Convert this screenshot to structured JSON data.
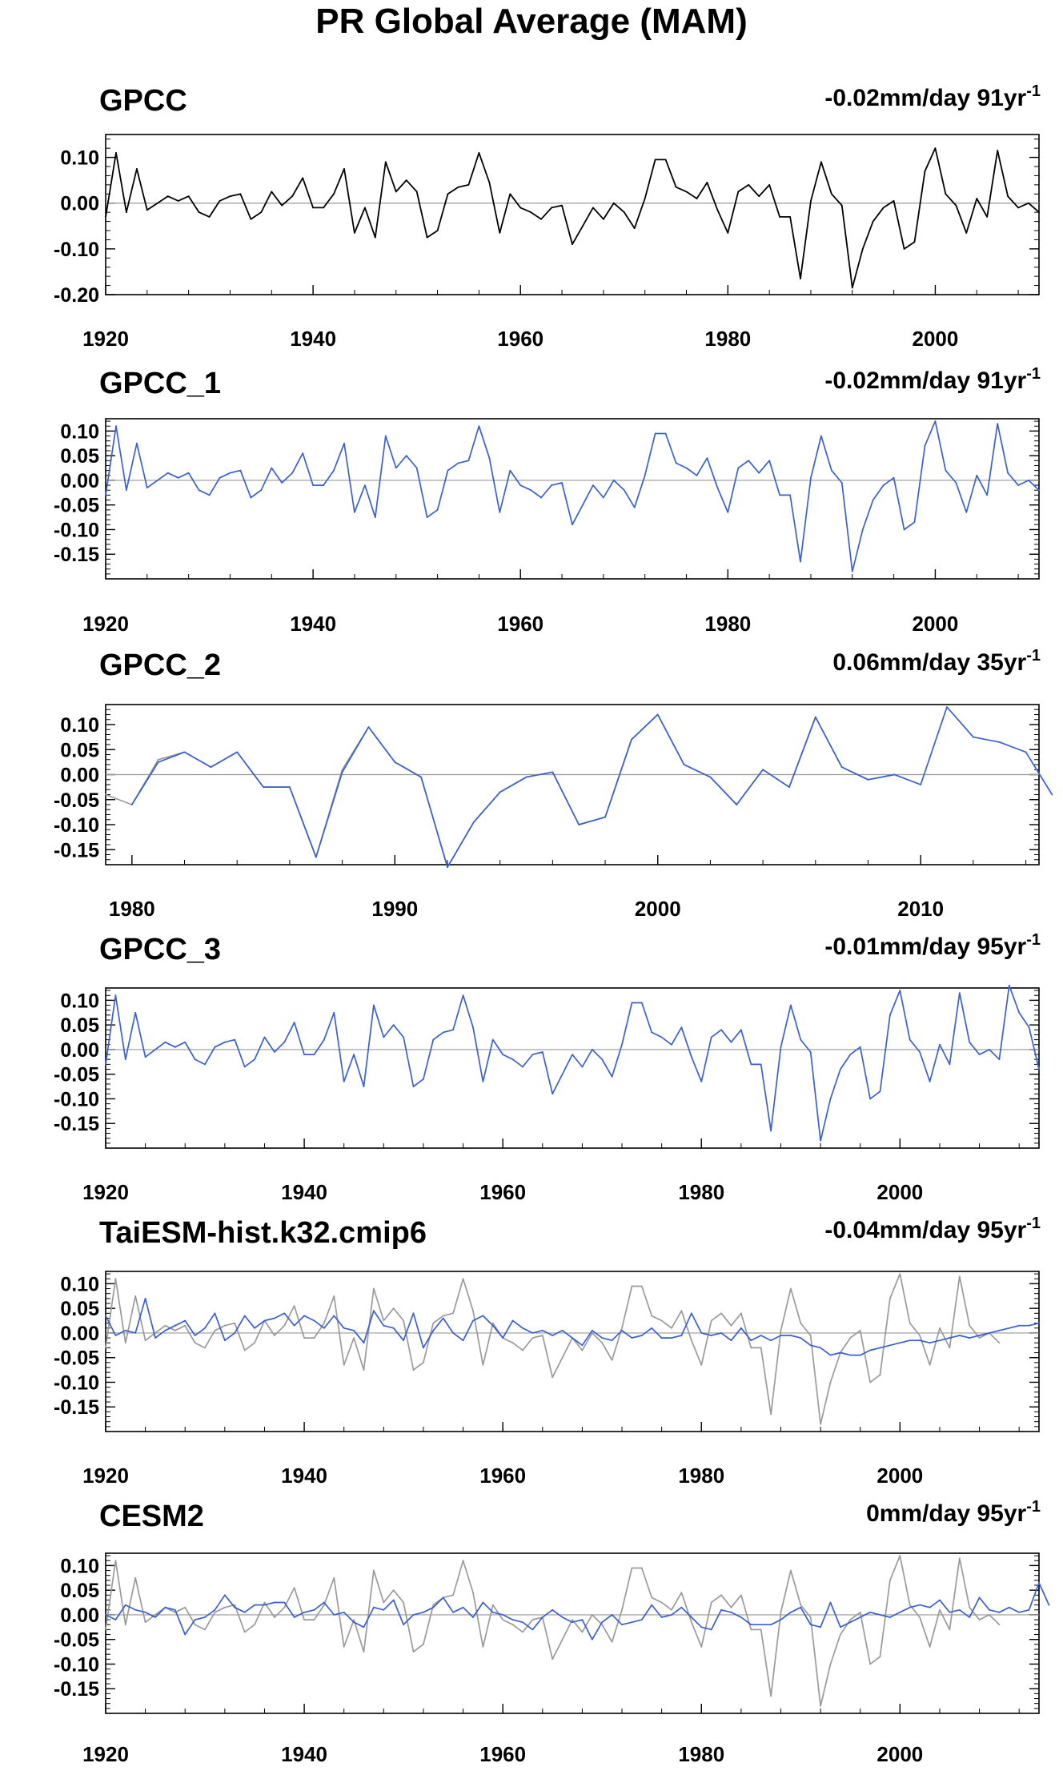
{
  "title": "PR Global Average (MAM)",
  "colors": {
    "observation": "#000000",
    "model": "#3a5fd0",
    "reference": "#9a9a9a",
    "zero_line": "#9a9a9a"
  },
  "chart_data": [
    {
      "type": "line",
      "panel_title": "GPCC",
      "trend_value": "-0.02mm/day 91yr",
      "trend_unit_exp": "-1",
      "xlim": [
        1920,
        2010
      ],
      "ylim": [
        -0.2,
        0.15
      ],
      "yticks": [
        0.1,
        0.0,
        -0.1,
        -0.2
      ],
      "ytick_labels": [
        "0.10",
        "0.00",
        "-0.10",
        "-0.20"
      ],
      "xticks": [
        1920,
        1940,
        1960,
        1980,
        2000
      ],
      "series": [
        {
          "role": "observation",
          "x_start": 1920,
          "values": [
            -0.03,
            0.11,
            -0.02,
            0.075,
            -0.015,
            0,
            0.015,
            0.005,
            0.015,
            -0.02,
            -0.03,
            0.005,
            0.015,
            0.02,
            -0.035,
            -0.02,
            0.025,
            -0.005,
            0.015,
            0.055,
            -0.01,
            -0.01,
            0.02,
            0.075,
            -0.065,
            -0.01,
            -0.075,
            0.09,
            0.025,
            0.05,
            0.025,
            -0.075,
            -0.06,
            0.02,
            0.035,
            0.04,
            0.11,
            0.045,
            -0.065,
            0.02,
            -0.01,
            -0.02,
            -0.035,
            -0.01,
            -0.005,
            -0.09,
            -0.05,
            -0.01,
            -0.035,
            0,
            -0.02,
            -0.055,
            0.01,
            0.095,
            0.095,
            0.035,
            0.025,
            0.01,
            0.045,
            -0.015,
            -0.065,
            0.025,
            0.04,
            0.015,
            0.04,
            -0.03,
            -0.03,
            -0.165,
            0.005,
            0.09,
            0.02,
            -0.005,
            -0.185,
            -0.1,
            -0.04,
            -0.01,
            0.005,
            -0.1,
            -0.085,
            0.07,
            0.12,
            0.02,
            -0.005,
            -0.065,
            0.01,
            -0.03,
            0.115,
            0.015,
            -0.01,
            0,
            -0.02
          ]
        }
      ]
    },
    {
      "type": "line",
      "panel_title": "GPCC_1",
      "trend_value": "-0.02mm/day 91yr",
      "trend_unit_exp": "-1",
      "xlim": [
        1920,
        2010
      ],
      "ylim": [
        -0.2,
        0.125
      ],
      "yticks": [
        0.1,
        0.05,
        0.0,
        -0.05,
        -0.1,
        -0.15
      ],
      "ytick_labels": [
        "0.10",
        "0.05",
        "0.00",
        "-0.05",
        "-0.10",
        "-0.15"
      ],
      "xticks": [
        1920,
        1940,
        1960,
        1980,
        2000
      ],
      "series": [
        {
          "role": "model",
          "x_start": 1920,
          "values": [
            -0.03,
            0.11,
            -0.02,
            0.075,
            -0.015,
            0,
            0.015,
            0.005,
            0.015,
            -0.02,
            -0.03,
            0.005,
            0.015,
            0.02,
            -0.035,
            -0.02,
            0.025,
            -0.005,
            0.015,
            0.055,
            -0.01,
            -0.01,
            0.02,
            0.075,
            -0.065,
            -0.01,
            -0.075,
            0.09,
            0.025,
            0.05,
            0.025,
            -0.075,
            -0.06,
            0.02,
            0.035,
            0.04,
            0.11,
            0.045,
            -0.065,
            0.02,
            -0.01,
            -0.02,
            -0.035,
            -0.01,
            -0.005,
            -0.09,
            -0.05,
            -0.01,
            -0.035,
            0,
            -0.02,
            -0.055,
            0.01,
            0.095,
            0.095,
            0.035,
            0.025,
            0.01,
            0.045,
            -0.015,
            -0.065,
            0.025,
            0.04,
            0.015,
            0.04,
            -0.03,
            -0.03,
            -0.165,
            0.005,
            0.09,
            0.02,
            -0.005,
            -0.185,
            -0.1,
            -0.04,
            -0.01,
            0.005,
            -0.1,
            -0.085,
            0.07,
            0.12,
            0.02,
            -0.005,
            -0.065,
            0.01,
            -0.03,
            0.115,
            0.015,
            -0.01,
            0,
            -0.02
          ]
        }
      ]
    },
    {
      "type": "line",
      "panel_title": "GPCC_2",
      "trend_value": "0.06mm/day 35yr",
      "trend_unit_exp": "-1",
      "xlim": [
        1979,
        2014.5
      ],
      "ylim": [
        -0.18,
        0.14
      ],
      "yticks": [
        0.1,
        0.05,
        0.0,
        -0.05,
        -0.1,
        -0.15
      ],
      "ytick_labels": [
        "0.10",
        "0.05",
        "0.00",
        "-0.05",
        "-0.10",
        "-0.15"
      ],
      "xticks": [
        1980,
        1990,
        2000,
        2010
      ],
      "series": [
        {
          "role": "reference",
          "x_start": 1979,
          "values": [
            -0.04,
            -0.06,
            0.03,
            0.045,
            0.015,
            0.045,
            -0.025,
            -0.025,
            -0.165,
            0.01,
            0.095,
            0.025,
            -0.005,
            -0.185,
            -0.095,
            -0.035,
            -0.005,
            0.005,
            -0.1,
            -0.085,
            0.07,
            0.12,
            0.02,
            -0.005,
            -0.06,
            0.01,
            -0.025,
            0.115,
            0.015,
            -0.01,
            0,
            -0.02
          ]
        },
        {
          "role": "model",
          "x_start": 1980,
          "values": [
            -0.06,
            0.025,
            0.045,
            0.015,
            0.045,
            -0.025,
            -0.025,
            -0.165,
            0.005,
            0.095,
            0.025,
            -0.005,
            -0.185,
            -0.095,
            -0.035,
            -0.005,
            0.005,
            -0.1,
            -0.085,
            0.07,
            0.12,
            0.02,
            -0.005,
            -0.06,
            0.01,
            -0.025,
            0.115,
            0.015,
            -0.01,
            0,
            -0.02,
            0.135,
            0.075,
            0.065,
            0.045,
            -0.04
          ]
        }
      ]
    },
    {
      "type": "line",
      "panel_title": "GPCC_3",
      "trend_value": "-0.01mm/day 95yr",
      "trend_unit_exp": "-1",
      "xlim": [
        1920,
        2014
      ],
      "ylim": [
        -0.2,
        0.125
      ],
      "yticks": [
        0.1,
        0.05,
        0.0,
        -0.05,
        -0.1,
        -0.15
      ],
      "ytick_labels": [
        "0.10",
        "0.05",
        "0.00",
        "-0.05",
        "-0.10",
        "-0.15"
      ],
      "xticks": [
        1920,
        1940,
        1960,
        1980,
        2000
      ],
      "series": [
        {
          "role": "model",
          "x_start": 1920,
          "values": [
            -0.03,
            0.11,
            -0.02,
            0.075,
            -0.015,
            0,
            0.015,
            0.005,
            0.015,
            -0.02,
            -0.03,
            0.005,
            0.015,
            0.02,
            -0.035,
            -0.02,
            0.025,
            -0.005,
            0.015,
            0.055,
            -0.01,
            -0.01,
            0.02,
            0.075,
            -0.065,
            -0.01,
            -0.075,
            0.09,
            0.025,
            0.05,
            0.025,
            -0.075,
            -0.06,
            0.02,
            0.035,
            0.04,
            0.11,
            0.045,
            -0.065,
            0.02,
            -0.01,
            -0.02,
            -0.035,
            -0.01,
            -0.005,
            -0.09,
            -0.05,
            -0.01,
            -0.035,
            0,
            -0.02,
            -0.055,
            0.01,
            0.095,
            0.095,
            0.035,
            0.025,
            0.01,
            0.045,
            -0.015,
            -0.065,
            0.025,
            0.04,
            0.015,
            0.04,
            -0.03,
            -0.03,
            -0.165,
            0.005,
            0.09,
            0.02,
            -0.005,
            -0.185,
            -0.1,
            -0.04,
            -0.01,
            0.005,
            -0.1,
            -0.085,
            0.07,
            0.12,
            0.02,
            -0.005,
            -0.065,
            0.01,
            -0.03,
            0.115,
            0.015,
            -0.01,
            0,
            -0.02,
            0.13,
            0.075,
            0.045,
            -0.04
          ]
        }
      ]
    },
    {
      "type": "line",
      "panel_title": "TaiESM-hist.k32.cmip6",
      "trend_value": "-0.04mm/day 95yr",
      "trend_unit_exp": "-1",
      "xlim": [
        1920,
        2014
      ],
      "ylim": [
        -0.2,
        0.125
      ],
      "yticks": [
        0.1,
        0.05,
        0.0,
        -0.05,
        -0.1,
        -0.15
      ],
      "ytick_labels": [
        "0.10",
        "0.05",
        "0.00",
        "-0.05",
        "-0.10",
        "-0.15"
      ],
      "xticks": [
        1920,
        1940,
        1960,
        1980,
        2000
      ],
      "series": [
        {
          "role": "reference",
          "x_start": 1920,
          "values": [
            -0.03,
            0.11,
            -0.02,
            0.075,
            -0.015,
            0,
            0.015,
            0.005,
            0.015,
            -0.02,
            -0.03,
            0.005,
            0.015,
            0.02,
            -0.035,
            -0.02,
            0.025,
            -0.005,
            0.015,
            0.055,
            -0.01,
            -0.01,
            0.02,
            0.075,
            -0.065,
            -0.01,
            -0.075,
            0.09,
            0.025,
            0.05,
            0.025,
            -0.075,
            -0.06,
            0.02,
            0.035,
            0.04,
            0.11,
            0.045,
            -0.065,
            0.02,
            -0.01,
            -0.02,
            -0.035,
            -0.01,
            -0.005,
            -0.09,
            -0.05,
            -0.01,
            -0.035,
            0,
            -0.02,
            -0.055,
            0.01,
            0.095,
            0.095,
            0.035,
            0.025,
            0.01,
            0.045,
            -0.015,
            -0.065,
            0.025,
            0.04,
            0.015,
            0.04,
            -0.03,
            -0.03,
            -0.165,
            0.005,
            0.09,
            0.02,
            -0.005,
            -0.185,
            -0.1,
            -0.04,
            -0.01,
            0.005,
            -0.1,
            -0.085,
            0.07,
            0.12,
            0.02,
            -0.005,
            -0.065,
            0.01,
            -0.03,
            0.115,
            0.015,
            -0.01,
            0,
            -0.02
          ]
        },
        {
          "role": "model",
          "x_start": 1920,
          "values": [
            0.035,
            -0.005,
            0.005,
            0,
            0.07,
            -0.01,
            0.005,
            0.015,
            0.025,
            -0.005,
            0.01,
            0.04,
            -0.015,
            0,
            0.035,
            0.01,
            0.025,
            0.03,
            0.04,
            0.015,
            0.035,
            0.025,
            0.01,
            0.035,
            0.01,
            0.005,
            -0.02,
            0.045,
            0.015,
            0.01,
            -0.015,
            0.04,
            -0.03,
            0.005,
            0.03,
            0,
            -0.015,
            0.025,
            0.035,
            0.015,
            -0.01,
            0.025,
            0.01,
            0,
            0.005,
            -0.005,
            0.005,
            -0.01,
            -0.025,
            0.005,
            -0.01,
            -0.015,
            0.005,
            -0.01,
            -0.005,
            0.01,
            -0.01,
            -0.01,
            -0.005,
            0.04,
            0,
            -0.005,
            0,
            -0.015,
            0.01,
            -0.015,
            -0.005,
            -0.015,
            -0.005,
            -0.005,
            -0.01,
            -0.025,
            -0.03,
            -0.045,
            -0.04,
            -0.045,
            -0.045,
            -0.035,
            -0.03,
            -0.025,
            -0.02,
            -0.015,
            -0.015,
            -0.02,
            -0.015,
            -0.01,
            -0.005,
            -0.01,
            -0.005,
            0,
            0.005,
            0.01,
            0.015,
            0.015,
            0.02
          ]
        }
      ]
    },
    {
      "type": "line",
      "panel_title": "CESM2",
      "trend_value": "0mm/day 95yr",
      "trend_unit_exp": "-1",
      "xlim": [
        1920,
        2014
      ],
      "ylim": [
        -0.2,
        0.125
      ],
      "yticks": [
        0.1,
        0.05,
        0.0,
        -0.05,
        -0.1,
        -0.15
      ],
      "ytick_labels": [
        "0.10",
        "0.05",
        "0.00",
        "-0.05",
        "-0.10",
        "-0.15"
      ],
      "xticks": [
        1920,
        1940,
        1960,
        1980,
        2000
      ],
      "series": [
        {
          "role": "reference",
          "x_start": 1920,
          "values": [
            -0.03,
            0.11,
            -0.02,
            0.075,
            -0.015,
            0,
            0.015,
            0.005,
            0.015,
            -0.02,
            -0.03,
            0.005,
            0.015,
            0.02,
            -0.035,
            -0.02,
            0.025,
            -0.005,
            0.015,
            0.055,
            -0.01,
            -0.01,
            0.02,
            0.075,
            -0.065,
            -0.01,
            -0.075,
            0.09,
            0.025,
            0.05,
            0.025,
            -0.075,
            -0.06,
            0.02,
            0.035,
            0.04,
            0.11,
            0.045,
            -0.065,
            0.02,
            -0.01,
            -0.02,
            -0.035,
            -0.01,
            -0.005,
            -0.09,
            -0.05,
            -0.01,
            -0.035,
            0,
            -0.02,
            -0.055,
            0.01,
            0.095,
            0.095,
            0.035,
            0.025,
            0.01,
            0.045,
            -0.015,
            -0.065,
            0.025,
            0.04,
            0.015,
            0.04,
            -0.03,
            -0.03,
            -0.165,
            0.005,
            0.09,
            0.02,
            -0.005,
            -0.185,
            -0.1,
            -0.04,
            -0.01,
            0.005,
            -0.1,
            -0.085,
            0.07,
            0.12,
            0.02,
            -0.005,
            -0.065,
            0.01,
            -0.03,
            0.115,
            0.015,
            -0.01,
            0,
            -0.02
          ]
        },
        {
          "role": "model",
          "x_start": 1920,
          "values": [
            0,
            -0.01,
            0.02,
            0.01,
            0.005,
            -0.005,
            0.015,
            0.01,
            -0.04,
            -0.01,
            -0.005,
            0.01,
            0.04,
            0.015,
            0.005,
            0.02,
            0.02,
            0.025,
            0.025,
            -0.005,
            0.005,
            0.01,
            0.025,
            0,
            0.005,
            -0.015,
            -0.025,
            0.015,
            0.01,
            0.03,
            -0.02,
            0,
            0.005,
            0.015,
            0.035,
            0.005,
            0.015,
            -0.005,
            0.025,
            0.005,
            0,
            -0.01,
            -0.015,
            -0.03,
            -0.005,
            0.01,
            -0.005,
            -0.015,
            -0.01,
            -0.05,
            -0.015,
            0,
            -0.02,
            -0.015,
            -0.01,
            0.02,
            -0.005,
            0,
            0.015,
            -0.005,
            -0.025,
            -0.03,
            0.01,
            0.005,
            -0.005,
            -0.02,
            -0.02,
            -0.02,
            -0.01,
            0.005,
            0.015,
            -0.02,
            -0.025,
            0.025,
            -0.025,
            -0.015,
            -0.005,
            0.005,
            0,
            -0.005,
            0.005,
            0.015,
            0.02,
            0.015,
            0.03,
            0.005,
            0.01,
            -0.005,
            0.035,
            0.01,
            0.005,
            0.015,
            0.005,
            0.01,
            0.065,
            0.02
          ]
        }
      ]
    }
  ]
}
